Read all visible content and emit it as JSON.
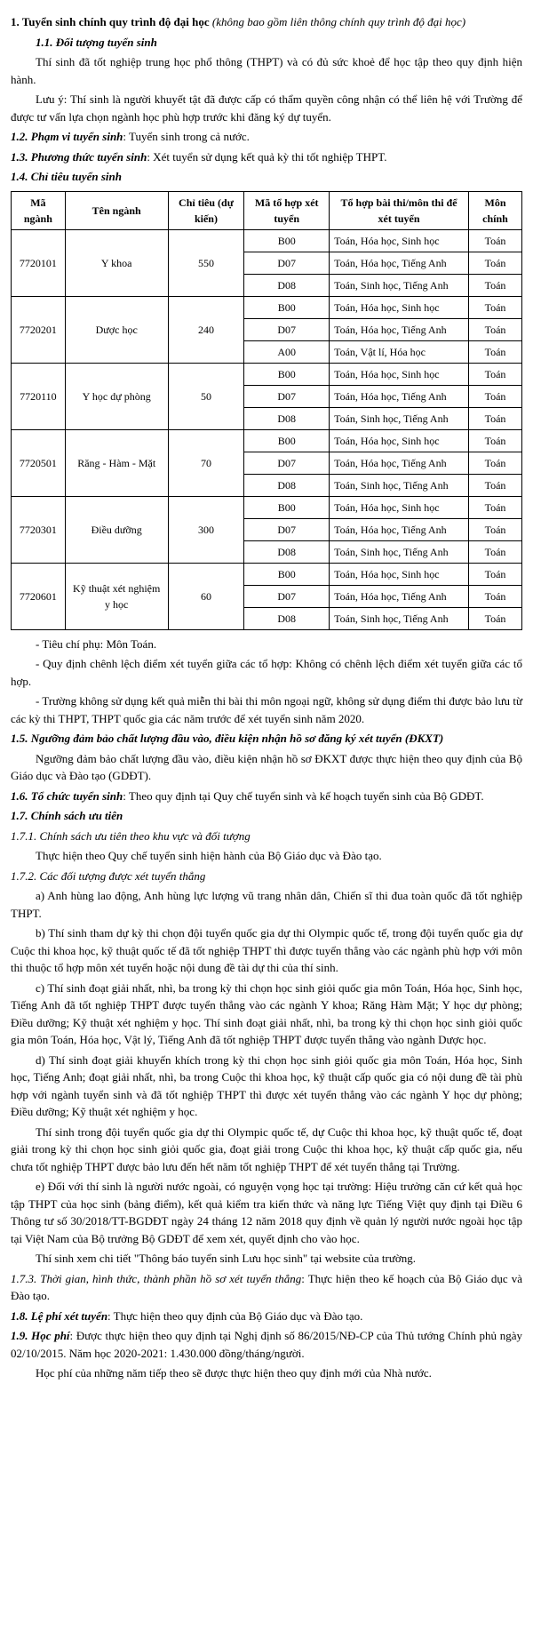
{
  "h1": "1. Tuyển sinh chính quy trình độ đại học",
  "h1_note": "(không bao gồm liên thông chính quy trình độ đại học)",
  "s11_title": "1.1. Đối tượng tuyển sinh",
  "s11_p1": "Thí sinh đã tốt nghiệp trung học phổ thông (THPT) và có đủ sức khoẻ để học tập theo quy định hiện hành.",
  "s11_p2": "Lưu ý: Thí sinh là người khuyết tật đã được cấp có thẩm quyền công nhận có thể liên hệ với Trường để được tư vấn lựa chọn ngành học phù hợp trước khi đăng ký dự tuyển.",
  "s12_title": "1.2. Phạm vi tuyển sinh",
  "s12_text": ": Tuyển sinh trong cả nước.",
  "s13_title": "1.3. Phương thức tuyển sinh",
  "s13_text": ": Xét tuyển sử dụng kết quả kỳ thi tốt nghiệp THPT.",
  "s14_title": "1.4. Chỉ tiêu tuyển sinh",
  "table": {
    "headers": [
      "Mã ngành",
      "Tên ngành",
      "Chỉ tiêu (dự kiến)",
      "Mã tổ hợp xét tuyển",
      "Tổ hợp bài thi/môn thi để xét tuyển",
      "Môn chính"
    ],
    "majors": [
      {
        "code": "7720101",
        "name": "Y khoa",
        "quota": "550",
        "rows": [
          {
            "mato": "B00",
            "combo": "Toán, Hóa học, Sinh học",
            "mon": "Toán"
          },
          {
            "mato": "D07",
            "combo": "Toán, Hóa học, Tiếng Anh",
            "mon": "Toán"
          },
          {
            "mato": "D08",
            "combo": "Toán, Sinh học, Tiếng Anh",
            "mon": "Toán"
          }
        ]
      },
      {
        "code": "7720201",
        "name": "Dược học",
        "quota": "240",
        "rows": [
          {
            "mato": "B00",
            "combo": "Toán, Hóa học, Sinh học",
            "mon": "Toán"
          },
          {
            "mato": "D07",
            "combo": "Toán, Hóa học, Tiếng Anh",
            "mon": "Toán"
          },
          {
            "mato": "A00",
            "combo": "Toán, Vật lí, Hóa học",
            "mon": "Toán"
          }
        ]
      },
      {
        "code": "7720110",
        "name": "Y học dự phòng",
        "quota": "50",
        "rows": [
          {
            "mato": "B00",
            "combo": "Toán, Hóa học, Sinh học",
            "mon": "Toán"
          },
          {
            "mato": "D07",
            "combo": "Toán, Hóa học, Tiếng Anh",
            "mon": "Toán"
          },
          {
            "mato": "D08",
            "combo": "Toán, Sinh học, Tiếng Anh",
            "mon": "Toán"
          }
        ]
      },
      {
        "code": "7720501",
        "name": "Răng - Hàm - Mặt",
        "quota": "70",
        "rows": [
          {
            "mato": "B00",
            "combo": "Toán, Hóa học, Sinh học",
            "mon": "Toán"
          },
          {
            "mato": "D07",
            "combo": "Toán, Hóa học, Tiếng Anh",
            "mon": "Toán"
          },
          {
            "mato": "D08",
            "combo": "Toán, Sinh học, Tiếng Anh",
            "mon": "Toán"
          }
        ]
      },
      {
        "code": "7720301",
        "name": "Điều dưỡng",
        "quota": "300",
        "rows": [
          {
            "mato": "B00",
            "combo": "Toán, Hóa học, Sinh học",
            "mon": "Toán"
          },
          {
            "mato": "D07",
            "combo": "Toán, Hóa học, Tiếng Anh",
            "mon": "Toán"
          },
          {
            "mato": "D08",
            "combo": "Toán, Sinh học, Tiếng Anh",
            "mon": "Toán"
          }
        ]
      },
      {
        "code": "7720601",
        "name": "Kỹ thuật xét nghiệm y học",
        "quota": "60",
        "rows": [
          {
            "mato": "B00",
            "combo": "Toán, Hóa học, Sinh học",
            "mon": "Toán"
          },
          {
            "mato": "D07",
            "combo": "Toán, Hóa học, Tiếng Anh",
            "mon": "Toán"
          },
          {
            "mato": "D08",
            "combo": "Toán, Sinh học, Tiếng Anh",
            "mon": "Toán"
          }
        ]
      }
    ]
  },
  "post_tbl_1": "- Tiêu chí phụ: Môn Toán.",
  "post_tbl_2": "- Quy định chênh lệch điểm xét tuyển giữa các tổ hợp: Không có chênh lệch điểm xét tuyển giữa các tổ hợp.",
  "post_tbl_3": "- Trường không sử dụng kết quả miễn thi bài thi môn ngoại ngữ, không sử dụng điểm thi được bảo lưu từ các kỳ thi THPT, THPT quốc gia các năm trước để xét tuyển sinh năm 2020.",
  "s15_title": "1.5. Ngưỡng đảm bảo chất lượng đầu vào, điều kiện nhận hồ sơ đăng ký xét tuyển (ĐKXT)",
  "s15_p": "Ngưỡng đảm bảo chất lượng đầu vào, điều kiện nhận hồ sơ ĐKXT được thực hiện theo quy định của Bộ Giáo dục và Đào tạo (GDĐT).",
  "s16_title": "1.6. Tổ chức tuyển sinh",
  "s16_text": ": Theo quy định tại Quy chế tuyển sinh và kế hoạch tuyển sinh của Bộ GDĐT.",
  "s17_title": "1.7. Chính sách ưu tiên",
  "s171_title": "1.7.1. Chính sách ưu tiên theo khu vực và đối tượng",
  "s171_p": "Thực hiện theo Quy chế tuyển sinh hiện hành của Bộ Giáo dục và Đào tạo.",
  "s172_title": "1.7.2. Các đối tượng được xét tuyển thẳng",
  "s172_a": "a) Anh hùng lao động, Anh hùng lực lượng vũ trang nhân dân, Chiến sĩ thi đua toàn quốc đã tốt nghiệp THPT.",
  "s172_b": "b) Thí sinh tham dự kỳ thi chọn đội tuyển quốc gia dự thi Olympic quốc tế, trong đội tuyển quốc gia dự Cuộc thi khoa học, kỹ thuật quốc tế đã tốt nghiệp THPT thì được tuyển thẳng vào các ngành phù hợp với môn thi thuộc tổ hợp môn xét tuyển hoặc nội dung đề tài dự thi của thí sinh.",
  "s172_c": "c) Thí sinh đoạt giải nhất, nhì, ba trong kỳ thi chọn học sinh giỏi quốc gia môn Toán, Hóa học, Sinh học, Tiếng Anh đã tốt nghiệp THPT được tuyển thẳng vào các ngành Y khoa; Răng Hàm Mặt; Y học dự phòng; Điều dưỡng; Kỹ thuật xét nghiệm y học. Thí sinh đoạt giải nhất, nhì, ba trong kỳ thi chọn học sinh giỏi quốc gia môn Toán, Hóa học, Vật lý, Tiếng Anh đã tốt nghiệp THPT được tuyển thẳng vào ngành Dược học.",
  "s172_d": "d) Thí sinh đoạt giải khuyến khích trong kỳ thi chọn học sinh giỏi quốc gia môn Toán, Hóa học, Sinh học, Tiếng Anh; đoạt giải nhất, nhì, ba trong Cuộc thi khoa học, kỹ thuật cấp quốc gia có nội dung đề tài phù hợp với ngành tuyển sinh và đã tốt nghiệp THPT thì được xét tuyển thẳng vào các ngành Y học dự phòng; Điều dưỡng; Kỹ thuật xét nghiệm y học.",
  "s172_d2": "Thí sinh trong đội tuyển quốc gia dự thi Olympic quốc tế, dự Cuộc thi khoa học, kỹ thuật quốc tế, đoạt giải trong kỳ thi chọn học sinh giỏi quốc gia, đoạt giải trong Cuộc thi khoa học, kỹ thuật cấp quốc gia, nếu chưa tốt nghiệp THPT được bảo lưu đến hết năm tốt nghiệp THPT để xét tuyển thẳng tại Trường.",
  "s172_e": "e) Đối với thí sinh là người nước ngoài, có nguyện vọng học tại trường: Hiệu trưởng căn cứ kết quả học tập THPT của học sinh (bảng điểm), kết quả kiểm tra kiến thức và năng lực Tiếng Việt quy định tại Điều 6 Thông tư số 30/2018/TT-BGDĐT ngày 24 tháng 12 năm 2018 quy định về quản lý người nước ngoài học tập tại Việt Nam của Bộ trưởng Bộ GDĐT để xem xét, quyết định cho vào học.",
  "s172_e2": "Thí sinh xem chi tiết \"Thông báo tuyển sinh Lưu học sinh\" tại website của trường.",
  "s173_title": "1.7.3. Thời gian, hình thức, thành phần hồ sơ xét tuyển thẳng",
  "s173_text": ": Thực hiện theo kế hoạch của Bộ Giáo dục và Đào tạo.",
  "s18_title": "1.8. Lệ phí xét tuyển",
  "s18_text": ": Thực hiện theo quy định của Bộ Giáo dục và Đào tạo.",
  "s19_title": "1.9. Học phí",
  "s19_text": ": Được thực hiện theo quy định tại Nghị định số 86/2015/NĐ-CP của Thủ tướng Chính phủ ngày 02/10/2015. Năm học 2020-2021: 1.430.000 đồng/tháng/người.",
  "s19_p2": "Học phí của những năm tiếp theo sẽ được thực hiện theo quy định mới của Nhà nước."
}
